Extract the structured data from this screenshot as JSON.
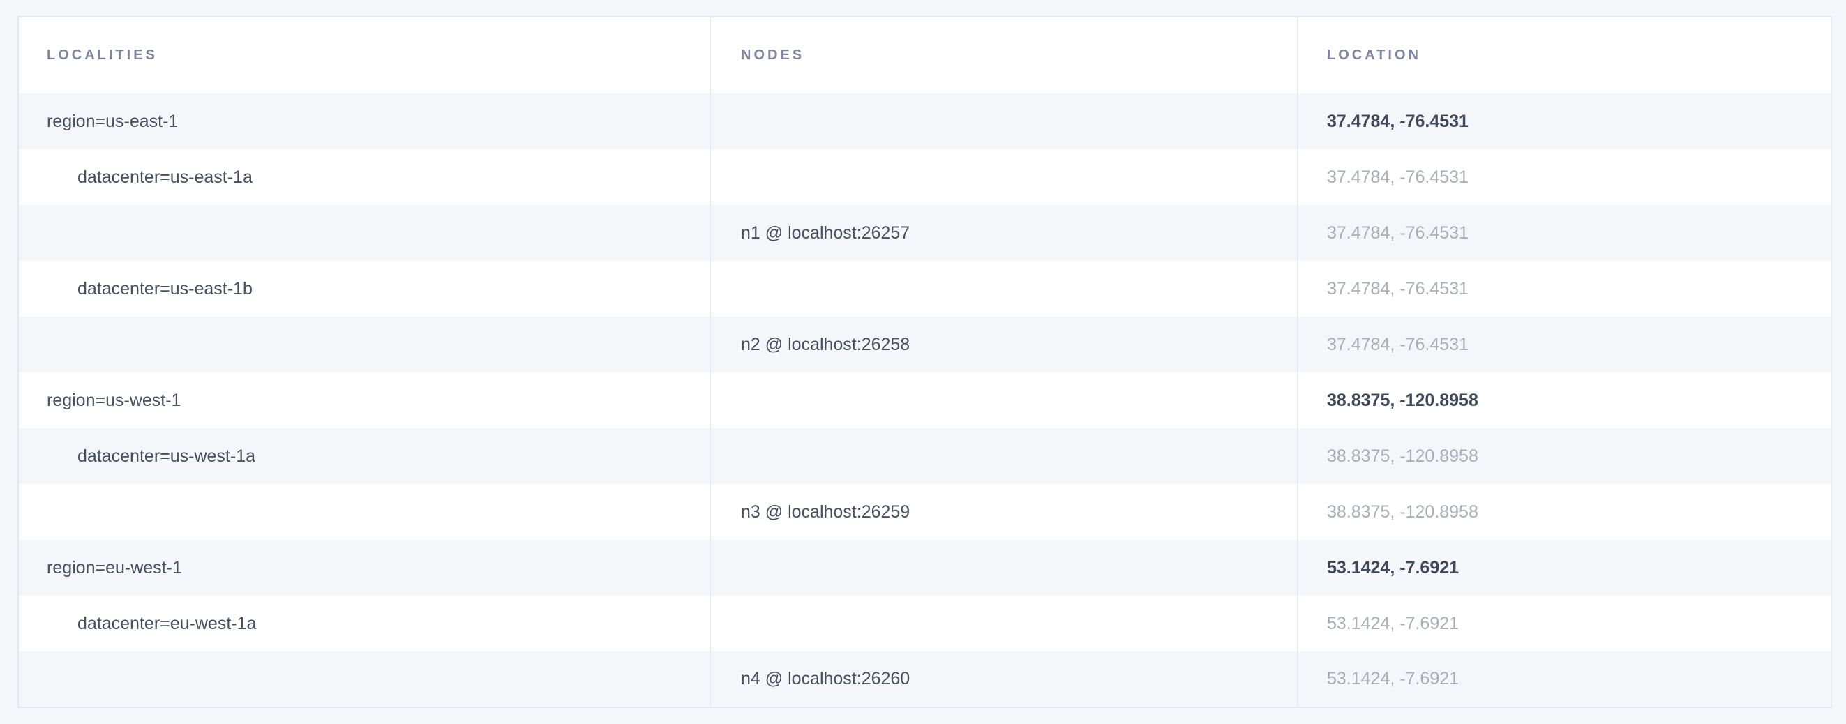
{
  "page": {
    "background_color": "#f5f7fa",
    "table_border_color": "#e2e8f0",
    "stripe_color": "#f4f6fa",
    "header_text_color": "#7d86a3",
    "text_dark_color": "#46505f",
    "text_muted_color": "#a9aeb8"
  },
  "table": {
    "columns": [
      {
        "key": "localities",
        "label": "LOCALITIES"
      },
      {
        "key": "nodes",
        "label": "NODES"
      },
      {
        "key": "location",
        "label": "LOCATION"
      }
    ],
    "rows": [
      {
        "type": "region",
        "locality": "region=us-east-1",
        "node": "",
        "location": "37.4784, -76.4531",
        "location_muted": false
      },
      {
        "type": "datacenter",
        "locality": "datacenter=us-east-1a",
        "node": "",
        "location": "37.4784, -76.4531",
        "location_muted": true
      },
      {
        "type": "node",
        "locality": "",
        "node": "n1 @ localhost:26257",
        "location": "37.4784, -76.4531",
        "location_muted": true
      },
      {
        "type": "datacenter",
        "locality": "datacenter=us-east-1b",
        "node": "",
        "location": "37.4784, -76.4531",
        "location_muted": true
      },
      {
        "type": "node",
        "locality": "",
        "node": "n2 @ localhost:26258",
        "location": "37.4784, -76.4531",
        "location_muted": true
      },
      {
        "type": "region",
        "locality": "region=us-west-1",
        "node": "",
        "location": "38.8375, -120.8958",
        "location_muted": false
      },
      {
        "type": "datacenter",
        "locality": "datacenter=us-west-1a",
        "node": "",
        "location": "38.8375, -120.8958",
        "location_muted": true
      },
      {
        "type": "node",
        "locality": "",
        "node": "n3 @ localhost:26259",
        "location": "38.8375, -120.8958",
        "location_muted": true
      },
      {
        "type": "region",
        "locality": "region=eu-west-1",
        "node": "",
        "location": "53.1424, -7.6921",
        "location_muted": false
      },
      {
        "type": "datacenter",
        "locality": "datacenter=eu-west-1a",
        "node": "",
        "location": "53.1424, -7.6921",
        "location_muted": true
      },
      {
        "type": "node",
        "locality": "",
        "node": "n4 @ localhost:26260",
        "location": "53.1424, -7.6921",
        "location_muted": true
      }
    ]
  }
}
